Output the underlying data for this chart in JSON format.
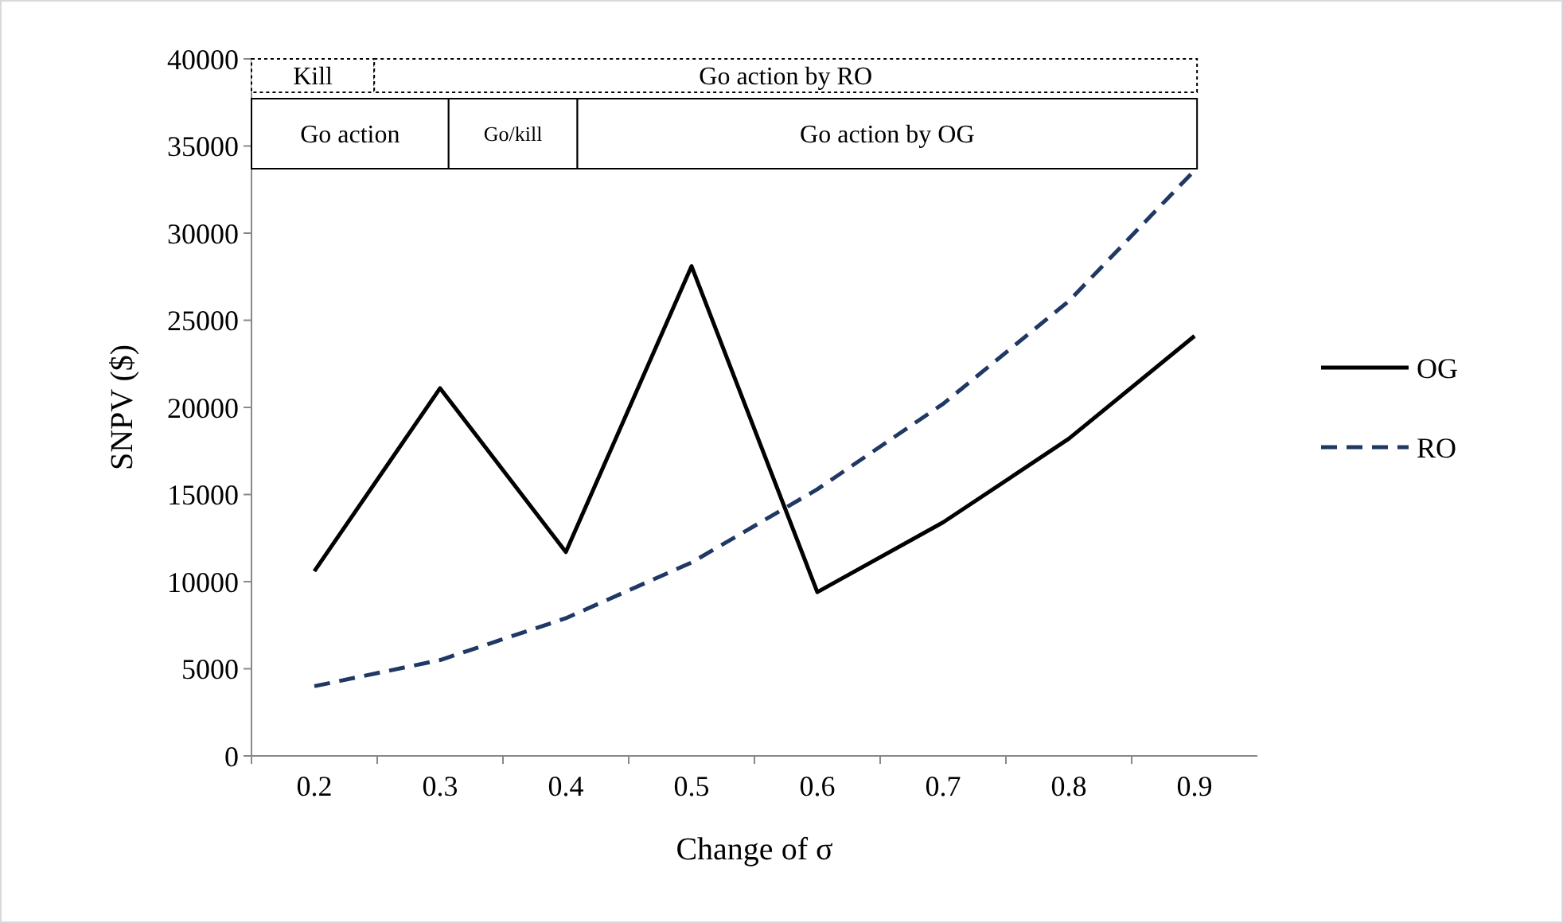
{
  "chart_data": {
    "type": "line",
    "xlabel": "Change of σ",
    "ylabel": "SNPV ($)",
    "categories": [
      "0.2",
      "0.3",
      "0.4",
      "0.5",
      "0.6",
      "0.7",
      "0.8",
      "0.9"
    ],
    "series": [
      {
        "name": "OG",
        "color": "#000000",
        "line_style": "solid",
        "values": [
          10600,
          21100,
          11700,
          28100,
          9400,
          13400,
          18200,
          24100
        ]
      },
      {
        "name": "RO",
        "color": "#1f3864",
        "line_style": "dashed",
        "values": [
          4000,
          5500,
          7900,
          11100,
          15300,
          20200,
          26100,
          33600
        ]
      }
    ],
    "ylim": [
      0,
      40000
    ],
    "yticks": [
      0,
      5000,
      10000,
      15000,
      20000,
      25000,
      30000,
      35000,
      40000
    ],
    "grid": false,
    "legend": "right",
    "marker": "none",
    "annotations": [
      "Kill",
      "Go action by RO",
      "Go action",
      "Go/kill",
      "Go action by OG"
    ]
  }
}
